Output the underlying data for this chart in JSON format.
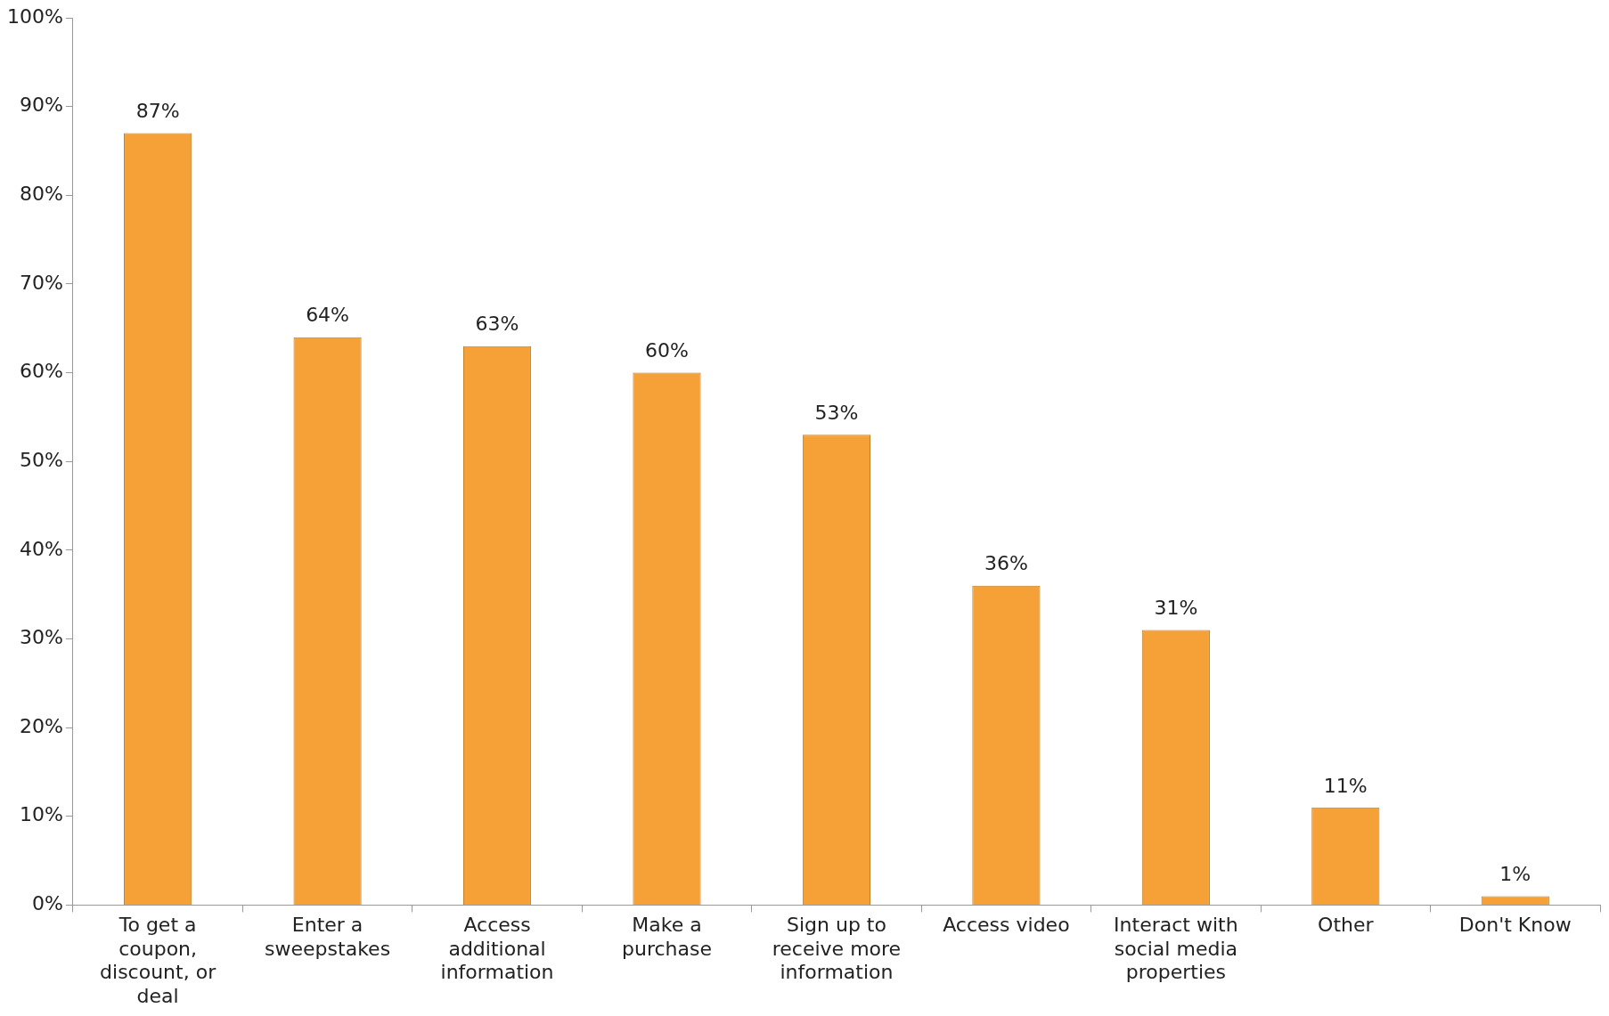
{
  "chart_data": {
    "type": "bar",
    "categories": [
      "To get a coupon, discount, or deal",
      "Enter a sweepstakes",
      "Access additional information",
      "Make a purchase",
      "Sign up to receive more information",
      "Access video",
      "Interact with social media properties",
      "Other",
      "Don't Know"
    ],
    "values": [
      87,
      64,
      63,
      60,
      53,
      36,
      31,
      11,
      1
    ],
    "value_labels": [
      "87%",
      "64%",
      "63%",
      "60%",
      "53%",
      "36%",
      "31%",
      "11%",
      "1%"
    ],
    "color": "#f5a137",
    "ylim": [
      0,
      100
    ],
    "yticks": [
      {
        "value": 0,
        "label": "0%"
      },
      {
        "value": 10,
        "label": "10%"
      },
      {
        "value": 20,
        "label": "20%"
      },
      {
        "value": 30,
        "label": "30%"
      },
      {
        "value": 40,
        "label": "40%"
      },
      {
        "value": 50,
        "label": "50%"
      },
      {
        "value": 60,
        "label": "60%"
      },
      {
        "value": 70,
        "label": "70%"
      },
      {
        "value": 80,
        "label": "80%"
      },
      {
        "value": 90,
        "label": "90%"
      },
      {
        "value": 100,
        "label": "100%"
      }
    ],
    "grid": false,
    "legend": false
  }
}
